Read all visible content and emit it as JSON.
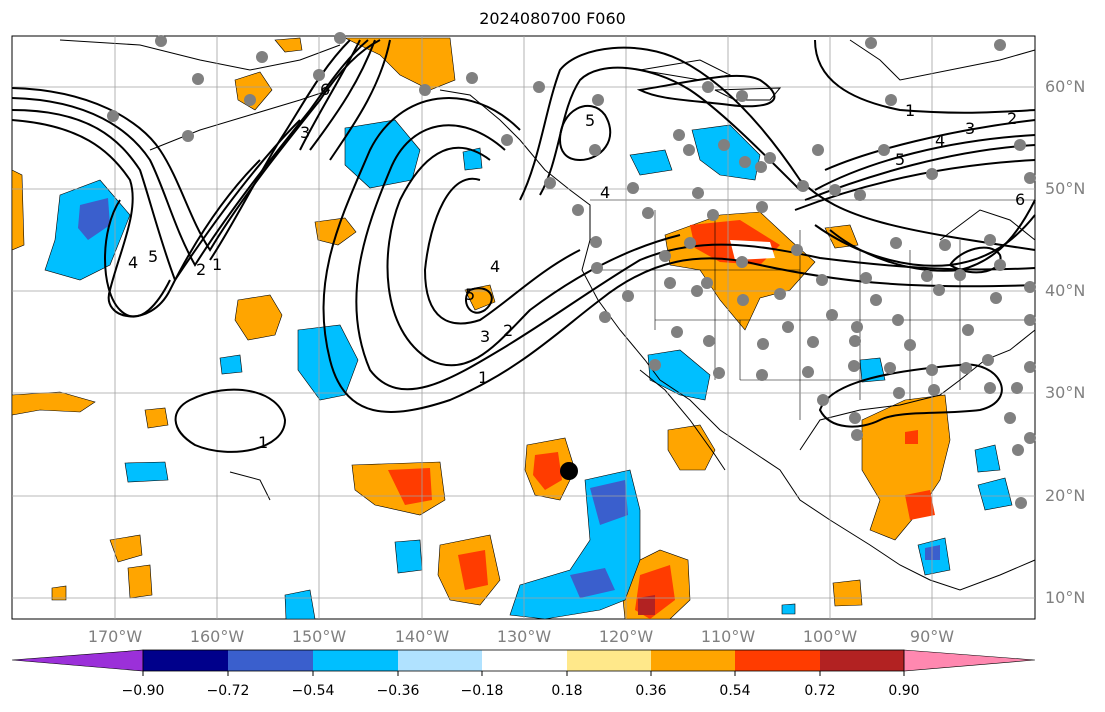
{
  "title": "2024080700 F060",
  "longitude_labels": [
    "170°W",
    "160°W",
    "150°W",
    "140°W",
    "130°W",
    "120°W",
    "110°W",
    "100°W",
    "90°W"
  ],
  "latitude_labels": [
    "60°N",
    "50°N",
    "40°N",
    "30°N",
    "20°N",
    "10°N"
  ],
  "contour_labels": [
    "1",
    "2",
    "3",
    "4",
    "5",
    "6"
  ],
  "colorbar": {
    "colors": [
      "#9b30d9",
      "#00008b",
      "#3a5fcd",
      "#00bfff",
      "#b0e2ff",
      "#ffffff",
      "#ffe88a",
      "#ffa500",
      "#ff3c00",
      "#b22222",
      "#ff88b0"
    ],
    "tick_labels": [
      "−0.90",
      "−0.72",
      "−0.54",
      "−0.36",
      "−0.18",
      "0.18",
      "0.36",
      "0.54",
      "0.72",
      "0.90"
    ]
  },
  "legend_colors": {
    "ocean_background": "#ffffff",
    "grid": "#a0a0a0",
    "contour": "#000000",
    "station_marker": "#808080",
    "storm_marker": "#000000"
  }
}
